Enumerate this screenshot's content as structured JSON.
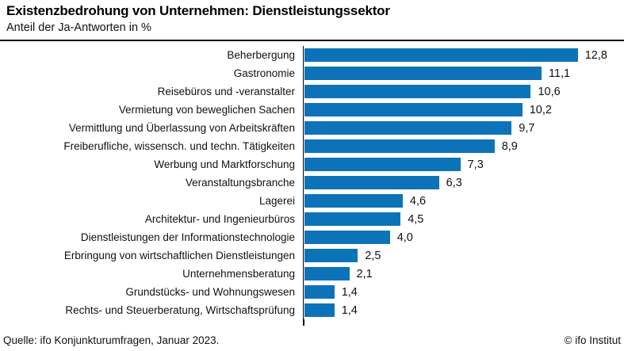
{
  "header": {
    "title": "Existenzbedrohung von Unternehmen: Dienstleistungssektor",
    "subtitle": "Anteil der Ja-Antworten in %"
  },
  "footer": {
    "source": "Quelle: ifo Konjunkturumfragen, Januar 2023.",
    "copyright": "© ifo Institut"
  },
  "colors": {
    "bar": "#0d73b8",
    "axis": "#000000",
    "text": "#111111"
  },
  "chart_data": {
    "type": "bar",
    "orientation": "horizontal",
    "title": "Existenzbedrohung von Unternehmen: Dienstleistungssektor",
    "subtitle": "Anteil der Ja-Antworten in %",
    "unit": "%",
    "grid": false,
    "xlim": [
      0,
      15
    ],
    "bar_color": "#0d73b8",
    "categories": [
      "Beherbergung",
      "Gastronomie",
      "Reisebüros und -veranstalter",
      "Vermietung von beweglichen Sachen",
      "Vermittlung und Überlassung von Arbeitskräften",
      "Freiberufliche, wissensch. und techn. Tätigkeiten",
      "Werbung und Marktforschung",
      "Veranstaltungsbranche",
      "Lagerei",
      "Architektur- und Ingenieurbüros",
      "Dienstleistungen der Informationstechnologie",
      "Erbringung von wirtschaftlichen Dienstleistungen",
      "Unternehmensberatung",
      "Grundstücks- und Wohnungswesen",
      "Rechts- und Steuerberatung, Wirtschaftsprüfung"
    ],
    "values": [
      12.8,
      11.1,
      10.6,
      10.2,
      9.7,
      8.9,
      7.3,
      6.3,
      4.6,
      4.5,
      4.0,
      2.5,
      2.1,
      1.4,
      1.4
    ],
    "value_labels": [
      "12,8",
      "11,1",
      "10,6",
      "10,2",
      "9,7",
      "8,9",
      "7,3",
      "6,3",
      "4,6",
      "4,5",
      "4,0",
      "2,5",
      "2,1",
      "1,4",
      "1,4"
    ]
  }
}
